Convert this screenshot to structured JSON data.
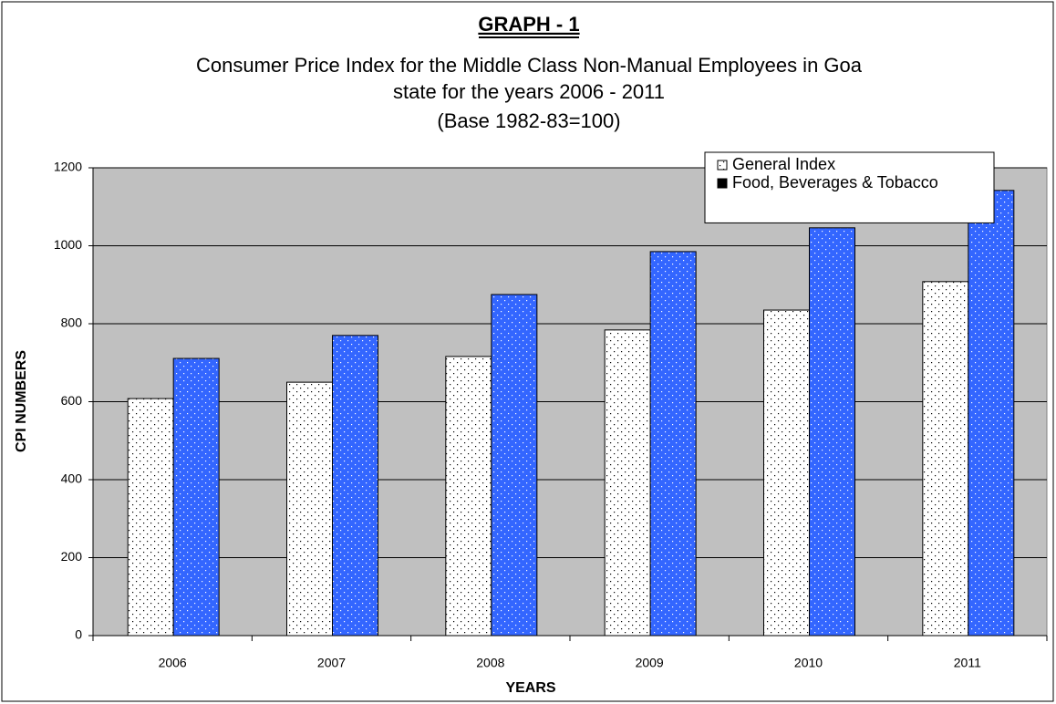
{
  "chart_data": {
    "type": "bar",
    "title": "GRAPH - 1",
    "subtitle": [
      "Consumer Price Index for the Middle Class Non-Manual Employees in Goa",
      "state for the years 2006 - 2011",
      "(Base 1982-83=100)"
    ],
    "x_label": "YEARS",
    "y_label": "CPI NUMBERS",
    "categories": [
      "2006",
      "2007",
      "2008",
      "2009",
      "2010",
      "2011"
    ],
    "series": [
      {
        "name": "General Index",
        "color": "#ffffff",
        "values": [
          608,
          650,
          716,
          784,
          835,
          908
        ]
      },
      {
        "name": "Food, Beverages & Tobacco",
        "color": "#3366ff",
        "values": [
          711,
          770,
          875,
          985,
          1046,
          1142
        ]
      }
    ],
    "ylim": [
      0,
      1200
    ],
    "yticks": [
      0,
      200,
      400,
      600,
      800,
      1000,
      1200
    ],
    "grid": true,
    "legend": "top-right"
  }
}
